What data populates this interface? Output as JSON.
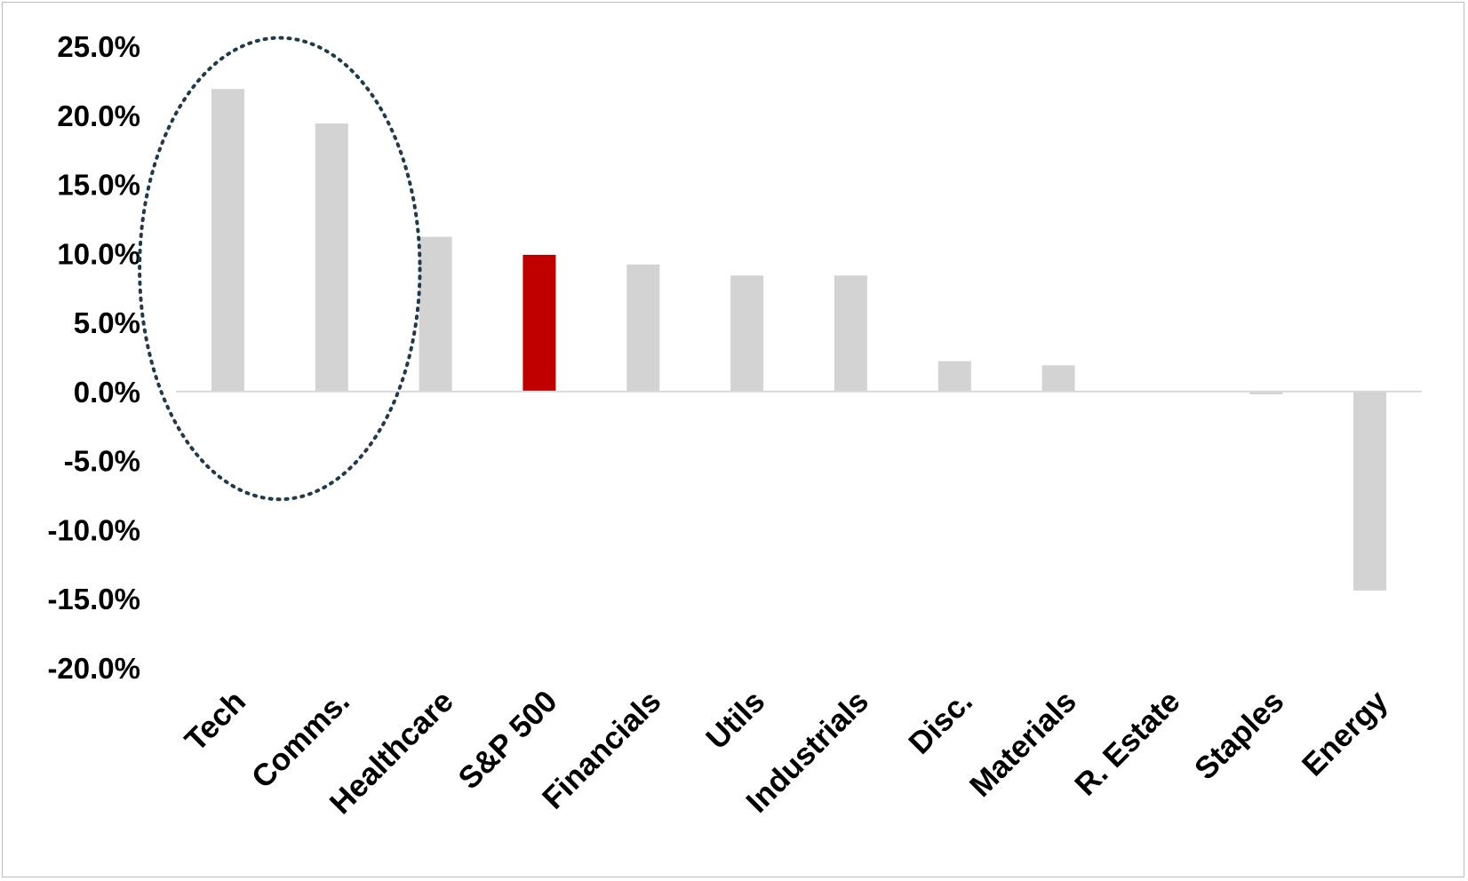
{
  "chart_data": {
    "type": "bar",
    "categories": [
      "Tech",
      "Comms.",
      "Healthcare",
      "S&P 500",
      "Financials",
      "Utils",
      "Industrials",
      "Disc.",
      "Materials",
      "R. Estate",
      "Staples",
      "Energy"
    ],
    "values": [
      21.9,
      19.4,
      11.2,
      9.9,
      9.2,
      8.4,
      8.4,
      2.2,
      1.9,
      0.0,
      -0.2,
      -14.4
    ],
    "y_ticks": [
      "25.0%",
      "20.0%",
      "15.0%",
      "10.0%",
      "5.0%",
      "0.0%",
      "-5.0%",
      "-10.0%",
      "-15.0%",
      "-20.0%"
    ],
    "ylim": [
      -20,
      25
    ],
    "highlight_category": "S&P 500",
    "colors": {
      "bar": "#d3d3d3",
      "highlight": "#c00000",
      "axis": "#d9d9d9",
      "ellipse": "#1f3a4d"
    },
    "annotation": {
      "type": "dotted-ellipse",
      "encloses": [
        "Tech",
        "Comms."
      ],
      "y_range": [
        -7.8,
        25.6
      ]
    },
    "grid": false,
    "legend": "none"
  }
}
